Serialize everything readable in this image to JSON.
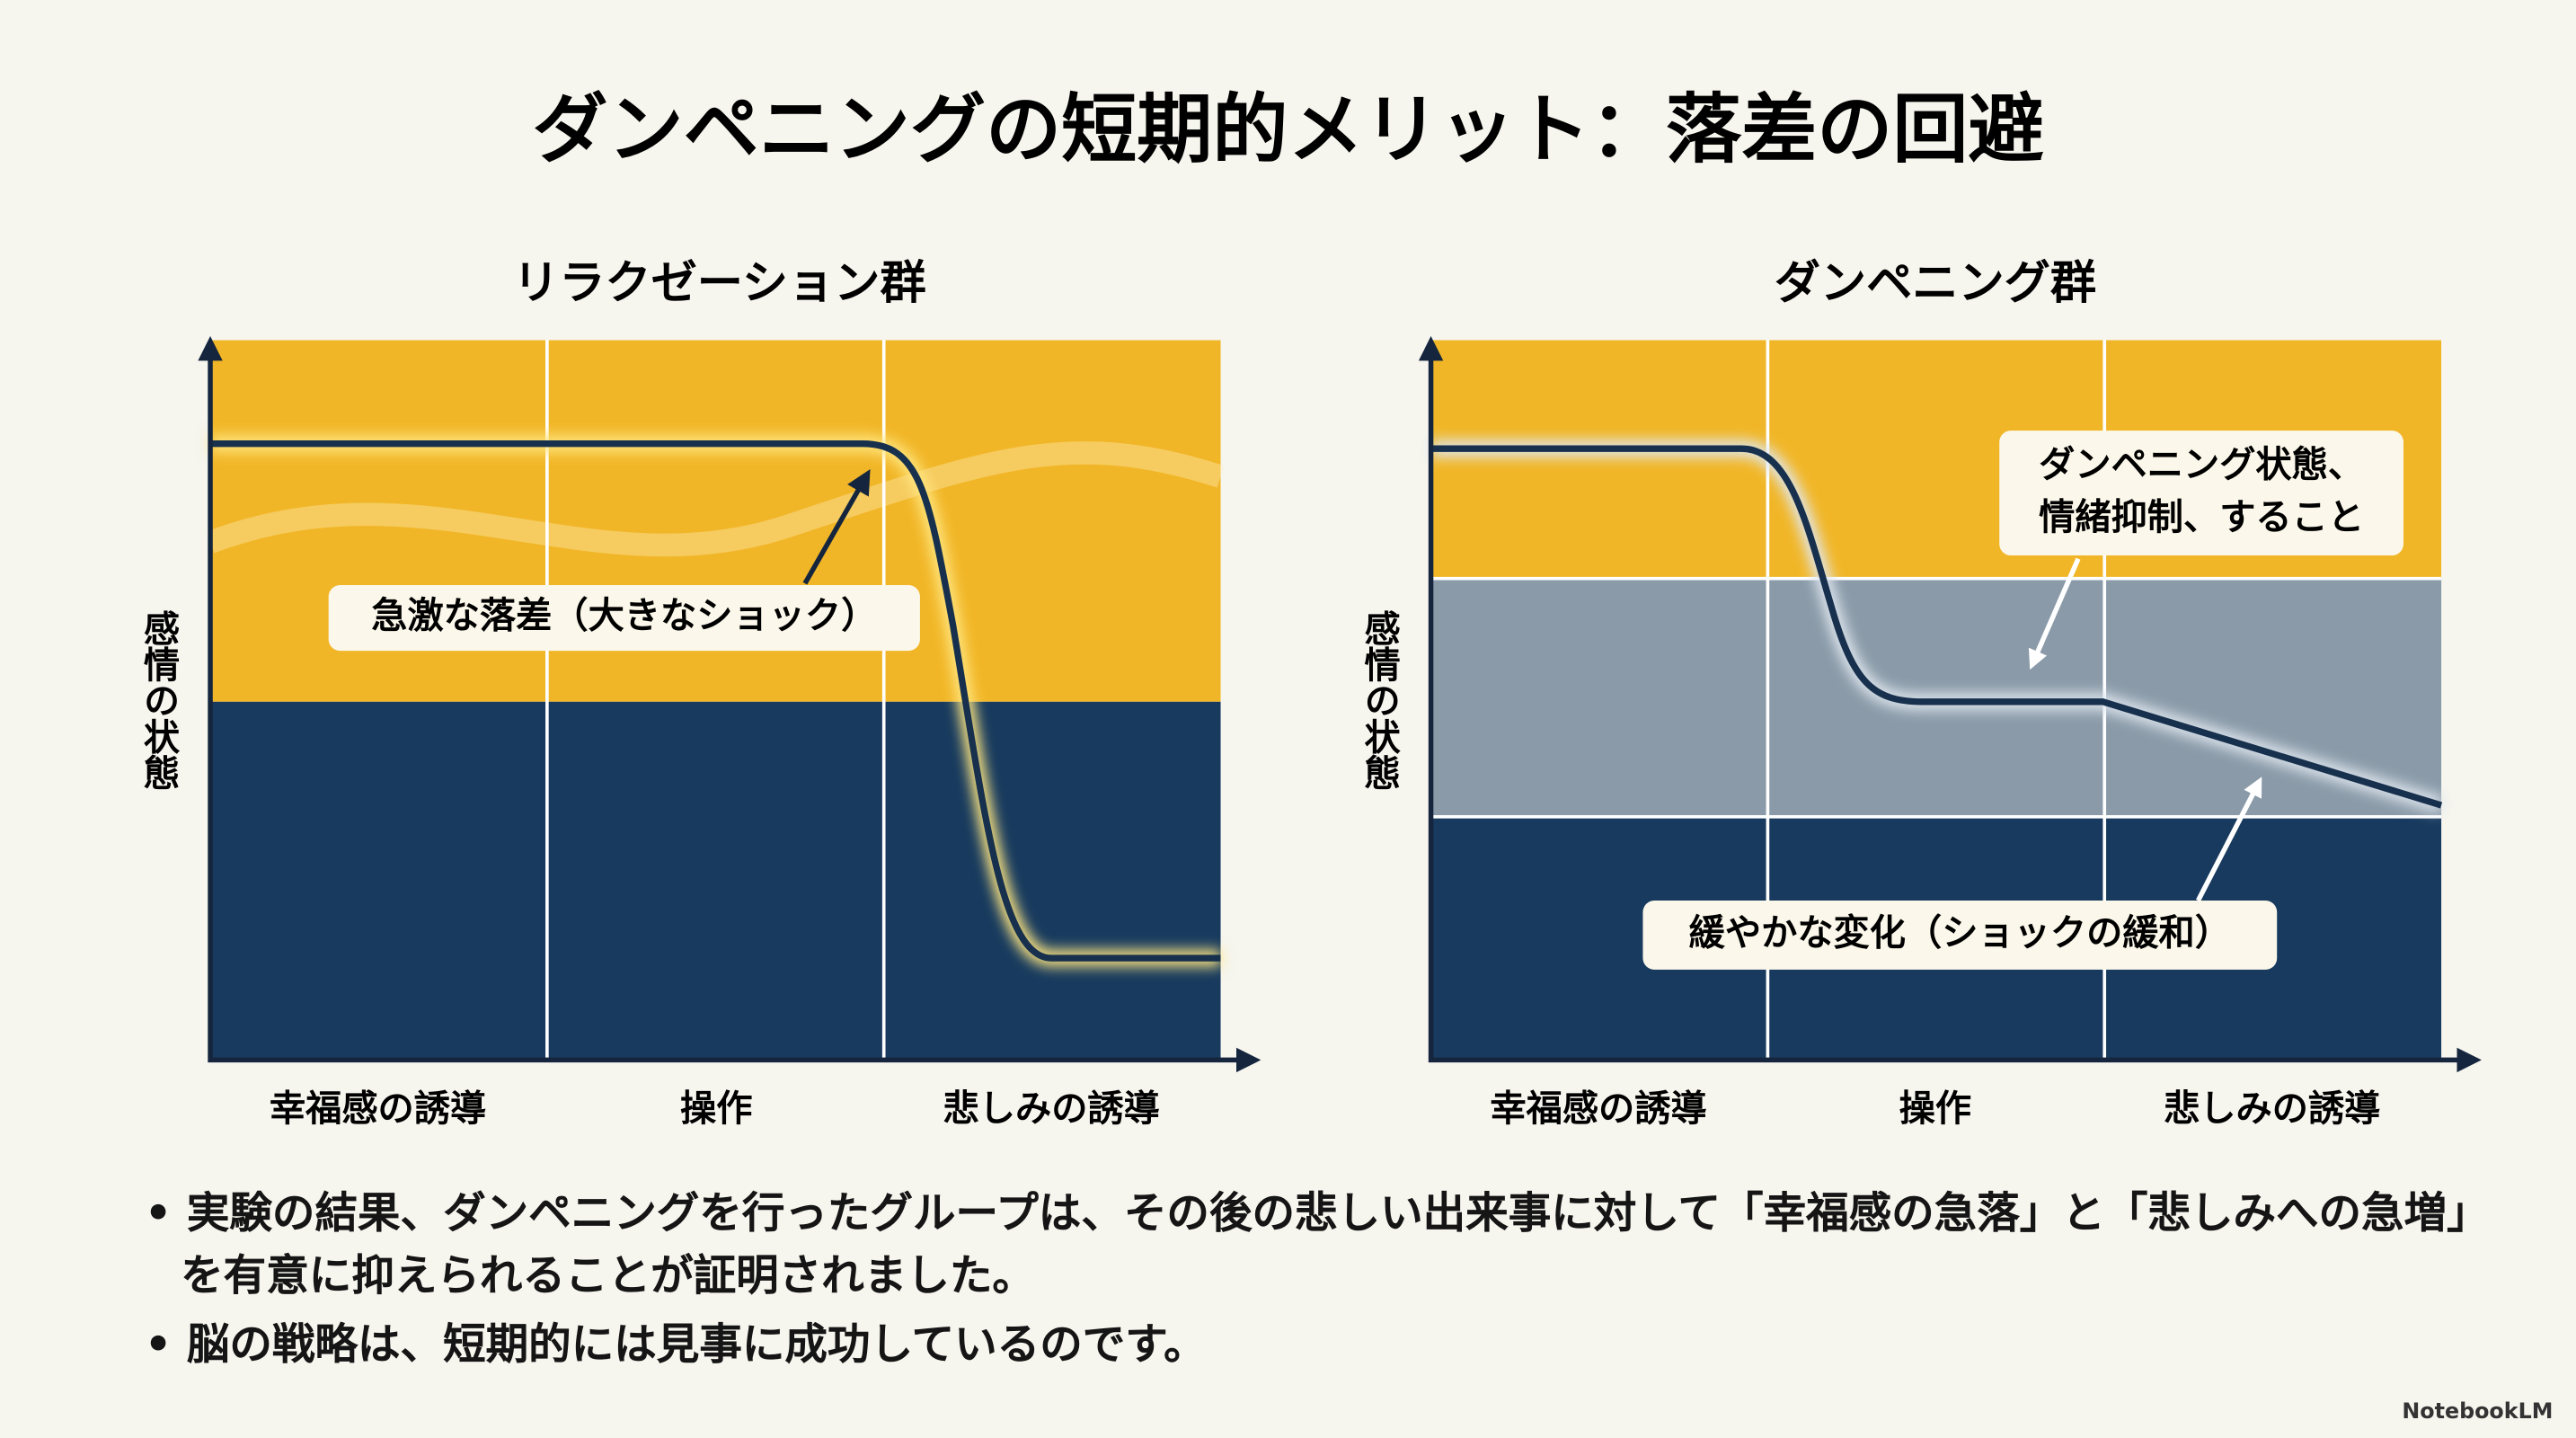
{
  "title": "ダンペニングの短期的メリット：落差の回避",
  "panels": [
    {
      "title": "リラクゼーション群",
      "y_label": "感情の状態",
      "x_labels": [
        "幸福感の誘導",
        "操作",
        "悲しみの誘導"
      ],
      "annotations": [
        [
          "急激な落差（大きなショック）"
        ]
      ]
    },
    {
      "title": "ダンペニング群",
      "y_label": "感情の状態",
      "x_labels": [
        "幸福感の誘導",
        "操作",
        "悲しみの誘導"
      ],
      "annotations": [
        [
          "ダンペニング状態、",
          "情緒抑制、すること"
        ],
        [
          "緩やかな変化（ショックの緩和）"
        ]
      ]
    }
  ],
  "bullets": [
    "実験の結果、ダンペニングを行ったグループは、その後の悲しい出来事に対して「幸福感の急落」と「悲しみへの急増」を有意に抑えられることが証明されました。",
    "脳の戦略は、短期的には見事に成功しているのです。"
  ],
  "footer": "NotebookLM"
}
